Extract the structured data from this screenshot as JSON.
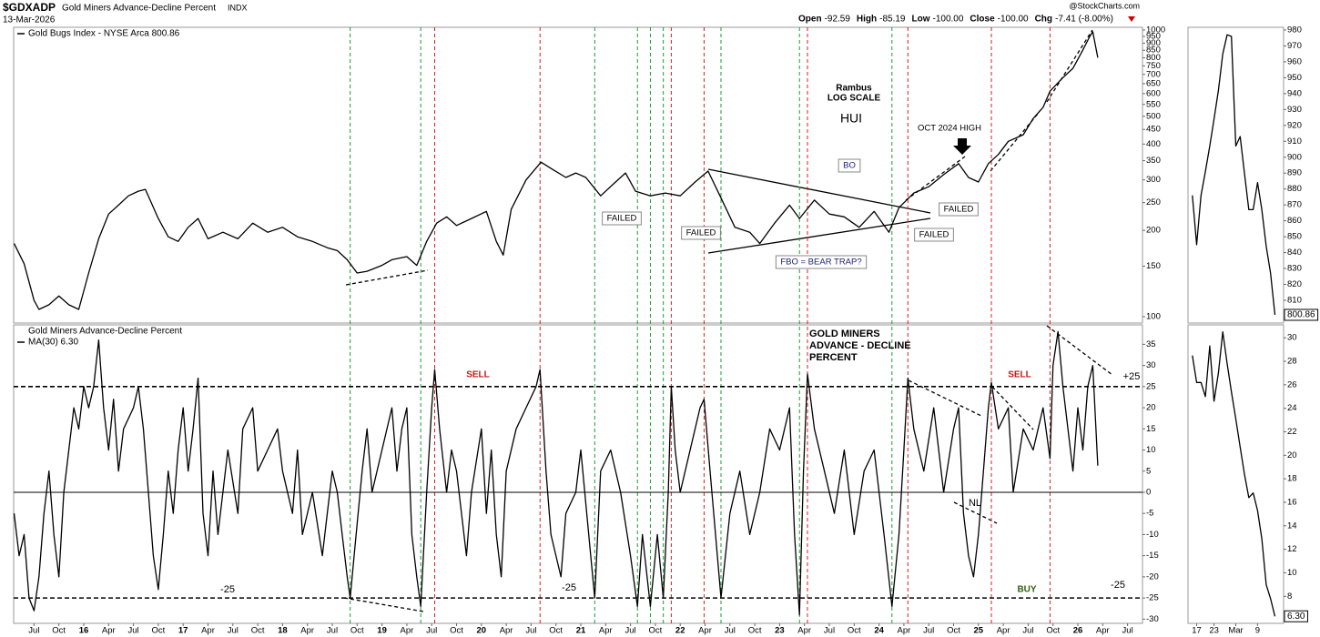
{
  "header": {
    "symbol": "$GDXADP",
    "name": "Gold Miners Advance-Decline Percent",
    "exchange": "INDX",
    "date": "13-Mar-2026",
    "source": "@StockCharts.com",
    "ohlc": [
      {
        "label": "Open",
        "value": "-92.59"
      },
      {
        "label": "High",
        "value": "-85.19"
      },
      {
        "label": "Low",
        "value": "-100.00"
      },
      {
        "label": "Close",
        "value": "-100.00"
      },
      {
        "label": "Chg",
        "value": "-7.41 (-8.00%)"
      }
    ]
  },
  "chart_data": [
    {
      "type": "line",
      "legend": "Gold Bugs Index - NYSE Arca 800.86",
      "log_scale": true,
      "color": "#000000",
      "x": [
        2015.3,
        2015.4,
        2015.5,
        2015.55,
        2015.65,
        2015.75,
        2015.85,
        2015.95,
        2016.05,
        2016.15,
        2016.25,
        2016.35,
        2016.45,
        2016.55,
        2016.62,
        2016.75,
        2016.85,
        2016.95,
        2017.05,
        2017.15,
        2017.25,
        2017.4,
        2017.55,
        2017.7,
        2017.85,
        2018.0,
        2018.15,
        2018.3,
        2018.45,
        2018.55,
        2018.65,
        2018.75,
        2018.85,
        2019.0,
        2019.1,
        2019.25,
        2019.35,
        2019.45,
        2019.55,
        2019.65,
        2019.75,
        2019.9,
        2020.05,
        2020.15,
        2020.22,
        2020.3,
        2020.45,
        2020.6,
        2020.7,
        2020.85,
        2020.95,
        2021.05,
        2021.2,
        2021.35,
        2021.45,
        2021.55,
        2021.7,
        2021.85,
        2022.0,
        2022.15,
        2022.28,
        2022.4,
        2022.55,
        2022.7,
        2022.8,
        2022.95,
        2023.1,
        2023.2,
        2023.35,
        2023.5,
        2023.65,
        2023.8,
        2023.95,
        2024.1,
        2024.2,
        2024.35,
        2024.5,
        2024.65,
        2024.8,
        2024.9,
        2025.0,
        2025.1,
        2025.2,
        2025.3,
        2025.45,
        2025.55,
        2025.65,
        2025.72,
        2025.85,
        2025.95,
        2026.05,
        2026.12,
        2026.15,
        2026.2
      ],
      "values": [
        180,
        153,
        114,
        106,
        110,
        118,
        110,
        106,
        142,
        187,
        228,
        245,
        264,
        274,
        278,
        220,
        190,
        183,
        205,
        220,
        187,
        197,
        187,
        212,
        197,
        205,
        190,
        183,
        174,
        170,
        158,
        142,
        144,
        151,
        158,
        162,
        151,
        183,
        212,
        223,
        208,
        220,
        233,
        183,
        164,
        237,
        300,
        346,
        329,
        306,
        317,
        306,
        264,
        295,
        317,
        274,
        264,
        270,
        264,
        295,
        322,
        264,
        205,
        197,
        180,
        212,
        245,
        220,
        255,
        228,
        223,
        205,
        233,
        197,
        240,
        270,
        284,
        313,
        342,
        306,
        295,
        342,
        368,
        409,
        431,
        491,
        537,
        612,
        682,
        735,
        852,
        950,
        986,
        800.86
      ],
      "xlim": [
        2015.295,
        2026.65
      ],
      "ylim": [
        95,
        1022
      ],
      "yticks": [
        100,
        150,
        200,
        250,
        300,
        350,
        400,
        450,
        500,
        550,
        600,
        650,
        700,
        750,
        800,
        850,
        900,
        950,
        1000
      ],
      "vlines": [
        {
          "x": 2018.68,
          "color": "#1a9a3a"
        },
        {
          "x": 2019.39,
          "color": "#1a9a3a"
        },
        {
          "x": 2021.14,
          "color": "#1a9a3a"
        },
        {
          "x": 2021.57,
          "color": "#1a9a3a"
        },
        {
          "x": 2021.7,
          "color": "#1a9a3a"
        },
        {
          "x": 2021.83,
          "color": "#1a9a3a"
        },
        {
          "x": 2022.41,
          "color": "#1a9a3a"
        },
        {
          "x": 2023.2,
          "color": "#1a9a3a"
        },
        {
          "x": 2024.13,
          "color": "#1a9a3a"
        },
        {
          "x": 2019.53,
          "color": "#d42020"
        },
        {
          "x": 2020.59,
          "color": "#d42020"
        },
        {
          "x": 2021.91,
          "color": "#d42020"
        },
        {
          "x": 2022.24,
          "color": "#d42020"
        },
        {
          "x": 2023.28,
          "color": "#d42020"
        },
        {
          "x": 2024.29,
          "color": "#d42020"
        },
        {
          "x": 2025.13,
          "color": "#d42020"
        },
        {
          "x": 2025.72,
          "color": "#d42020"
        }
      ],
      "annotations": [
        {
          "text": "Rambus"
        },
        {
          "text": "LOG SCALE"
        },
        {
          "text": "HUI"
        },
        {
          "text": "OCT 2024 HIGH"
        },
        {
          "text": "BO"
        },
        {
          "text": "FAILED"
        },
        {
          "text": "FAILED"
        },
        {
          "text": "FAILED"
        },
        {
          "text": "FAILED"
        },
        {
          "text": "FBO = BEAR TRAP?"
        }
      ]
    },
    {
      "type": "line",
      "title": "Gold Miners Advance-Decline Percent",
      "series": [
        {
          "name": "MA(30) 6.30",
          "color": "#000000",
          "values": [
            -5,
            -15,
            -10,
            -25,
            -28,
            -20,
            -5,
            5,
            -10,
            -20,
            0,
            10,
            20,
            15,
            25,
            20,
            25,
            36,
            20,
            10,
            22,
            5,
            15,
            20,
            25,
            15,
            0,
            -15,
            -23,
            -10,
            5,
            -5,
            10,
            20,
            5,
            15,
            27,
            -5,
            -15,
            5,
            -10,
            10,
            -5,
            15,
            20,
            5,
            10,
            15,
            5,
            -5,
            10,
            -10,
            0,
            -15,
            -5,
            5,
            0,
            -10,
            -20,
            -25,
            -15,
            5,
            15,
            0,
            10,
            20,
            5,
            15,
            20,
            -10,
            -20,
            -27,
            0,
            20,
            29,
            15,
            0,
            10,
            5,
            -15,
            0,
            15,
            -5,
            10,
            -10,
            -20,
            5,
            15,
            20,
            25,
            29,
            5,
            -10,
            -20,
            -5,
            0,
            10,
            -15,
            -25,
            5,
            10,
            0,
            -15,
            -27,
            -10,
            -27,
            -10,
            -25,
            0,
            25,
            10,
            0,
            10,
            20,
            22,
            5,
            -25,
            -5,
            5,
            -10,
            0,
            15,
            10,
            20,
            -10,
            -29,
            5,
            28,
            15,
            5,
            -5,
            10,
            -10,
            5,
            10,
            -10,
            -27,
            -10,
            10,
            27,
            15,
            5,
            20,
            0,
            15,
            20,
            -5,
            -15,
            -20,
            -10,
            5,
            20,
            26,
            15,
            20,
            0,
            15,
            10,
            20,
            8,
            30,
            38,
            25,
            15,
            5,
            20,
            10,
            25,
            30,
            6.3
          ]
        }
      ],
      "x": [
        2015.3,
        2015.35,
        2015.4,
        2015.45,
        2015.5,
        2015.55,
        2015.6,
        2015.65,
        2015.7,
        2015.75,
        2015.8,
        2015.85,
        2015.9,
        2015.95,
        2016.0,
        2016.05,
        2016.1,
        2016.15,
        2016.2,
        2016.25,
        2016.3,
        2016.35,
        2016.4,
        2016.5,
        2016.55,
        2016.6,
        2016.65,
        2016.7,
        2016.75,
        2016.8,
        2016.85,
        2016.9,
        2016.95,
        2017.0,
        2017.05,
        2017.1,
        2017.15,
        2017.2,
        2017.25,
        2017.3,
        2017.35,
        2017.45,
        2017.55,
        2017.6,
        2017.7,
        2017.75,
        2017.85,
        2017.95,
        2018.0,
        2018.1,
        2018.15,
        2018.2,
        2018.3,
        2018.4,
        2018.45,
        2018.5,
        2018.55,
        2018.6,
        2018.65,
        2018.68,
        2018.72,
        2018.8,
        2018.85,
        2018.9,
        2019.0,
        2019.1,
        2019.15,
        2019.2,
        2019.25,
        2019.3,
        2019.35,
        2019.39,
        2019.45,
        2019.5,
        2019.53,
        2019.58,
        2019.65,
        2019.7,
        2019.75,
        2019.85,
        2019.9,
        2020.0,
        2020.05,
        2020.1,
        2020.15,
        2020.2,
        2020.25,
        2020.35,
        2020.45,
        2020.55,
        2020.59,
        2020.65,
        2020.7,
        2020.8,
        2020.85,
        2020.95,
        2021.0,
        2021.1,
        2021.14,
        2021.2,
        2021.3,
        2021.4,
        2021.5,
        2021.57,
        2021.62,
        2021.7,
        2021.77,
        2021.83,
        2021.88,
        2021.91,
        2021.95,
        2022.0,
        2022.1,
        2022.2,
        2022.24,
        2022.3,
        2022.41,
        2022.5,
        2022.6,
        2022.7,
        2022.8,
        2022.9,
        2023.0,
        2023.1,
        2023.15,
        2023.2,
        2023.24,
        2023.28,
        2023.35,
        2023.45,
        2023.55,
        2023.65,
        2023.75,
        2023.85,
        2023.95,
        2024.05,
        2024.13,
        2024.2,
        2024.25,
        2024.29,
        2024.35,
        2024.45,
        2024.55,
        2024.65,
        2024.75,
        2024.8,
        2024.85,
        2024.9,
        2024.95,
        2025.0,
        2025.05,
        2025.1,
        2025.13,
        2025.2,
        2025.3,
        2025.35,
        2025.45,
        2025.55,
        2025.65,
        2025.72,
        2025.75,
        2025.8,
        2025.85,
        2025.9,
        2025.95,
        2026.0,
        2026.05,
        2026.1,
        2026.15,
        2026.2
      ],
      "xlim": [
        2015.295,
        2026.65
      ],
      "ylim": [
        -31,
        39.6
      ],
      "yticks": [
        -30,
        -25,
        -20,
        -15,
        -10,
        -5,
        0,
        5,
        10,
        15,
        20,
        25,
        30,
        35
      ],
      "xticks": [
        {
          "value": 2015.5,
          "label": "Jul"
        },
        {
          "value": 2015.75,
          "label": "Oct"
        },
        {
          "value": 2016.0,
          "label": "16"
        },
        {
          "value": 2016.25,
          "label": "Apr"
        },
        {
          "value": 2016.5,
          "label": "Jul"
        },
        {
          "value": 2016.75,
          "label": "Oct"
        },
        {
          "value": 2017.0,
          "label": "17"
        },
        {
          "value": 2017.25,
          "label": "Apr"
        },
        {
          "value": 2017.5,
          "label": "Jul"
        },
        {
          "value": 2017.75,
          "label": "Oct"
        },
        {
          "value": 2018.0,
          "label": "18"
        },
        {
          "value": 2018.25,
          "label": "Apr"
        },
        {
          "value": 2018.5,
          "label": "Jul"
        },
        {
          "value": 2018.75,
          "label": "Oct"
        },
        {
          "value": 2019.0,
          "label": "19"
        },
        {
          "value": 2019.25,
          "label": "Apr"
        },
        {
          "value": 2019.5,
          "label": "Jul"
        },
        {
          "value": 2019.75,
          "label": "Oct"
        },
        {
          "value": 2020.0,
          "label": "20"
        },
        {
          "value": 2020.25,
          "label": "Apr"
        },
        {
          "value": 2020.5,
          "label": "Jul"
        },
        {
          "value": 2020.75,
          "label": "Oct"
        },
        {
          "value": 2021.0,
          "label": "21"
        },
        {
          "value": 2021.25,
          "label": "Apr"
        },
        {
          "value": 2021.5,
          "label": "Jul"
        },
        {
          "value": 2021.75,
          "label": "Oct"
        },
        {
          "value": 2022.0,
          "label": "22"
        },
        {
          "value": 2022.25,
          "label": "Apr"
        },
        {
          "value": 2022.5,
          "label": "Jul"
        },
        {
          "value": 2022.75,
          "label": "Oct"
        },
        {
          "value": 2023.0,
          "label": "23"
        },
        {
          "value": 2023.25,
          "label": "Apr"
        },
        {
          "value": 2023.5,
          "label": "Jul"
        },
        {
          "value": 2023.75,
          "label": "Oct"
        },
        {
          "value": 2024.0,
          "label": "24"
        },
        {
          "value": 2024.25,
          "label": "Apr"
        },
        {
          "value": 2024.5,
          "label": "Jul"
        },
        {
          "value": 2024.75,
          "label": "Oct"
        },
        {
          "value": 2025.0,
          "label": "25"
        },
        {
          "value": 2025.25,
          "label": "Apr"
        },
        {
          "value": 2025.5,
          "label": "Jul"
        },
        {
          "value": 2025.75,
          "label": "Oct"
        },
        {
          "value": 2026.0,
          "label": "26"
        },
        {
          "value": 2026.25,
          "label": "Apr"
        },
        {
          "value": 2026.5,
          "label": "Jul"
        }
      ],
      "hlines": [
        25,
        -25
      ],
      "annotations": [
        {
          "text": "GOLD MINERS"
        },
        {
          "text": "ADVANCE - DECLINE"
        },
        {
          "text": "PERCENT"
        },
        {
          "text": "SELL"
        },
        {
          "text": "SELL"
        },
        {
          "text": "BUY"
        },
        {
          "text": "-25"
        },
        {
          "text": "-25"
        },
        {
          "text": "-25"
        },
        {
          "text": "+25"
        },
        {
          "text": "NL"
        }
      ]
    },
    {
      "type": "line",
      "color": "#000000",
      "x": [
        0,
        1,
        2,
        3,
        4,
        5,
        6,
        7,
        8,
        9,
        10,
        11,
        12,
        13,
        14,
        15,
        16,
        17,
        18,
        19
      ],
      "values": [
        876,
        845,
        876,
        891,
        907,
        924,
        942,
        965,
        977,
        976,
        907,
        913,
        890,
        867,
        867,
        884,
        867,
        844,
        827,
        800.86
      ],
      "xlim": [
        -1,
        21
      ],
      "ylim": [
        795.7,
        981.7
      ],
      "yticks": [
        810,
        820,
        830,
        840,
        850,
        860,
        870,
        880,
        890,
        900,
        910,
        920,
        930,
        940,
        950,
        960,
        970,
        980
      ],
      "last_label": "800.86"
    },
    {
      "type": "line",
      "color": "#000000",
      "x": [
        0,
        1,
        2,
        3,
        4,
        5,
        6,
        7,
        8,
        9,
        10,
        11,
        12,
        13,
        14,
        15,
        16,
        17,
        18,
        19
      ],
      "values": [
        28.5,
        26.2,
        26.2,
        25,
        29.3,
        24.6,
        27,
        30.5,
        27.8,
        25.4,
        23.1,
        20.7,
        18.4,
        16.4,
        16.8,
        15.3,
        12.9,
        9.0,
        7.8,
        6.3
      ],
      "xlim": [
        -1,
        21
      ],
      "ylim": [
        5.7,
        31.1
      ],
      "yticks": [
        8,
        10,
        12,
        14,
        16,
        18,
        20,
        22,
        24,
        26,
        28,
        30
      ],
      "xticks": [
        {
          "value": 1,
          "label": "17"
        },
        {
          "value": 5,
          "label": "23"
        },
        {
          "value": 10,
          "label": "Mar"
        },
        {
          "value": 15,
          "label": "9"
        }
      ],
      "last_label": "6.30"
    }
  ]
}
